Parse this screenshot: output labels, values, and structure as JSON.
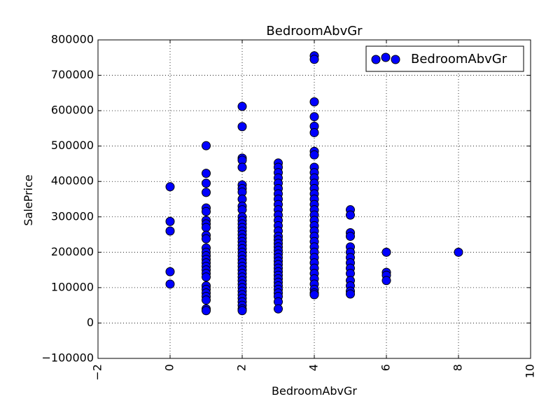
{
  "chart_data": {
    "type": "scatter",
    "title": "BedroomAbvGr",
    "xlabel": "BedroomAbvGr",
    "ylabel": "SalePrice",
    "xlim": [
      -2,
      10
    ],
    "ylim": [
      -100000,
      800000
    ],
    "xticks": [
      "−2",
      "0",
      "2",
      "4",
      "6",
      "8",
      "10"
    ],
    "xtick_values": [
      -2,
      0,
      2,
      4,
      6,
      8,
      10
    ],
    "yticks": [
      "−100000",
      "0",
      "100000",
      "200000",
      "300000",
      "400000",
      "500000",
      "600000",
      "700000",
      "800000"
    ],
    "ytick_values": [
      -100000,
      0,
      100000,
      200000,
      300000,
      400000,
      500000,
      600000,
      700000,
      800000
    ],
    "grid": true,
    "legend_position": "top-right",
    "marker_color": "#0000ff",
    "series": [
      {
        "name": "BedroomAbvGr",
        "points": [
          [
            0,
            385000
          ],
          [
            0,
            287000
          ],
          [
            0,
            260000
          ],
          [
            0,
            145000
          ],
          [
            0,
            110000
          ],
          [
            1,
            501000
          ],
          [
            1,
            423000
          ],
          [
            1,
            395000
          ],
          [
            1,
            369000
          ],
          [
            1,
            325000
          ],
          [
            1,
            315000
          ],
          [
            1,
            290000
          ],
          [
            1,
            280000
          ],
          [
            1,
            270000
          ],
          [
            1,
            248000
          ],
          [
            1,
            238000
          ],
          [
            1,
            212000
          ],
          [
            1,
            200000
          ],
          [
            1,
            190000
          ],
          [
            1,
            180000
          ],
          [
            1,
            170000
          ],
          [
            1,
            160000
          ],
          [
            1,
            150000
          ],
          [
            1,
            140000
          ],
          [
            1,
            130000
          ],
          [
            1,
            105000
          ],
          [
            1,
            95000
          ],
          [
            1,
            85000
          ],
          [
            1,
            75000
          ],
          [
            1,
            65000
          ],
          [
            1,
            40000
          ],
          [
            1,
            35000
          ],
          [
            2,
            612000
          ],
          [
            2,
            555000
          ],
          [
            2,
            466000
          ],
          [
            2,
            460000
          ],
          [
            2,
            440000
          ],
          [
            2,
            390000
          ],
          [
            2,
            380000
          ],
          [
            2,
            370000
          ],
          [
            2,
            350000
          ],
          [
            2,
            330000
          ],
          [
            2,
            320000
          ],
          [
            2,
            300000
          ],
          [
            2,
            290000
          ],
          [
            2,
            280000
          ],
          [
            2,
            270000
          ],
          [
            2,
            260000
          ],
          [
            2,
            250000
          ],
          [
            2,
            240000
          ],
          [
            2,
            230000
          ],
          [
            2,
            220000
          ],
          [
            2,
            210000
          ],
          [
            2,
            200000
          ],
          [
            2,
            190000
          ],
          [
            2,
            180000
          ],
          [
            2,
            170000
          ],
          [
            2,
            160000
          ],
          [
            2,
            150000
          ],
          [
            2,
            140000
          ],
          [
            2,
            130000
          ],
          [
            2,
            120000
          ],
          [
            2,
            110000
          ],
          [
            2,
            100000
          ],
          [
            2,
            90000
          ],
          [
            2,
            80000
          ],
          [
            2,
            70000
          ],
          [
            2,
            60000
          ],
          [
            2,
            50000
          ],
          [
            2,
            40000
          ],
          [
            2,
            35000
          ],
          [
            3,
            452000
          ],
          [
            3,
            440000
          ],
          [
            3,
            425000
          ],
          [
            3,
            410000
          ],
          [
            3,
            395000
          ],
          [
            3,
            380000
          ],
          [
            3,
            365000
          ],
          [
            3,
            350000
          ],
          [
            3,
            335000
          ],
          [
            3,
            320000
          ],
          [
            3,
            305000
          ],
          [
            3,
            290000
          ],
          [
            3,
            275000
          ],
          [
            3,
            260000
          ],
          [
            3,
            245000
          ],
          [
            3,
            235000
          ],
          [
            3,
            225000
          ],
          [
            3,
            215000
          ],
          [
            3,
            205000
          ],
          [
            3,
            195000
          ],
          [
            3,
            185000
          ],
          [
            3,
            175000
          ],
          [
            3,
            165000
          ],
          [
            3,
            155000
          ],
          [
            3,
            145000
          ],
          [
            3,
            135000
          ],
          [
            3,
            125000
          ],
          [
            3,
            115000
          ],
          [
            3,
            105000
          ],
          [
            3,
            95000
          ],
          [
            3,
            85000
          ],
          [
            3,
            75000
          ],
          [
            3,
            60000
          ],
          [
            3,
            40000
          ],
          [
            4,
            755000
          ],
          [
            4,
            745000
          ],
          [
            4,
            625000
          ],
          [
            4,
            583000
          ],
          [
            4,
            556000
          ],
          [
            4,
            538000
          ],
          [
            4,
            485000
          ],
          [
            4,
            475000
          ],
          [
            4,
            440000
          ],
          [
            4,
            425000
          ],
          [
            4,
            410000
          ],
          [
            4,
            395000
          ],
          [
            4,
            380000
          ],
          [
            4,
            365000
          ],
          [
            4,
            350000
          ],
          [
            4,
            335000
          ],
          [
            4,
            320000
          ],
          [
            4,
            305000
          ],
          [
            4,
            290000
          ],
          [
            4,
            275000
          ],
          [
            4,
            260000
          ],
          [
            4,
            245000
          ],
          [
            4,
            230000
          ],
          [
            4,
            215000
          ],
          [
            4,
            200000
          ],
          [
            4,
            185000
          ],
          [
            4,
            170000
          ],
          [
            4,
            155000
          ],
          [
            4,
            140000
          ],
          [
            4,
            125000
          ],
          [
            4,
            110000
          ],
          [
            4,
            95000
          ],
          [
            4,
            85000
          ],
          [
            4,
            80000
          ],
          [
            5,
            320000
          ],
          [
            5,
            305000
          ],
          [
            5,
            255000
          ],
          [
            5,
            245000
          ],
          [
            5,
            215000
          ],
          [
            5,
            200000
          ],
          [
            5,
            185000
          ],
          [
            5,
            170000
          ],
          [
            5,
            155000
          ],
          [
            5,
            140000
          ],
          [
            5,
            120000
          ],
          [
            5,
            105000
          ],
          [
            5,
            90000
          ],
          [
            5,
            82000
          ],
          [
            6,
            200000
          ],
          [
            6,
            143000
          ],
          [
            6,
            135000
          ],
          [
            6,
            120000
          ],
          [
            8,
            200000
          ]
        ]
      }
    ]
  }
}
